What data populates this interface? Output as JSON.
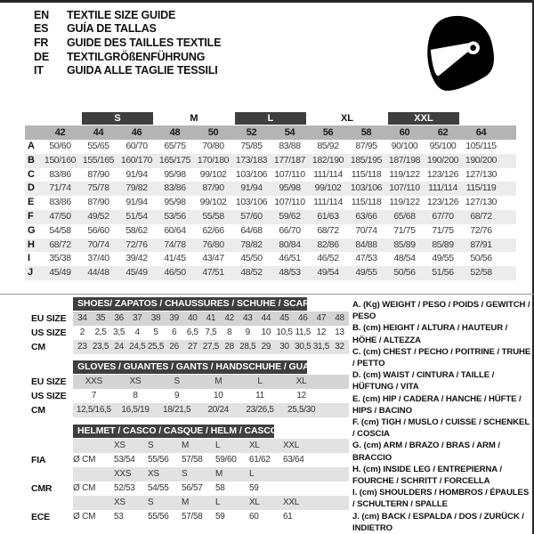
{
  "header": {
    "languages": [
      {
        "code": "EN",
        "title": "TEXTILE SIZE GUIDE"
      },
      {
        "code": "ES",
        "title": "GUÍA DE TALLAS"
      },
      {
        "code": "FR",
        "title": "GUIDE DES TAILLES TEXTILE"
      },
      {
        "code": "DE",
        "title": "TEXTILGRÖßENFÜHRUNG"
      },
      {
        "code": "IT",
        "title": "GUIDA ALLE TAGLIE TESSILI"
      }
    ],
    "helmet_icon": "full-face-helmet-icon"
  },
  "colors": {
    "dark_bar": "#3f3f3f",
    "column_header_gray": "#b4b4b4",
    "row_stripe": "#ececec",
    "section_row_gray": "#d4d4d4",
    "section_row_light_gray": "#e2e2e2",
    "border": "#262626"
  },
  "main_table": {
    "size_groups": [
      {
        "label": "",
        "cols": 1,
        "dark": false
      },
      {
        "label": "S",
        "cols": 2,
        "dark": true
      },
      {
        "label": "M",
        "cols": 2,
        "dark": false
      },
      {
        "label": "L",
        "cols": 2,
        "dark": true
      },
      {
        "label": "XL",
        "cols": 2,
        "dark": false
      },
      {
        "label": "XXL",
        "cols": 2,
        "dark": true
      },
      {
        "label": "",
        "cols": 1,
        "dark": false
      }
    ],
    "columns": [
      "42",
      "44",
      "46",
      "48",
      "50",
      "52",
      "54",
      "56",
      "58",
      "60",
      "62",
      "64"
    ],
    "rows": [
      {
        "label": "A",
        "values": [
          "50/60",
          "55/65",
          "60/70",
          "65/75",
          "70/80",
          "75/85",
          "83/88",
          "85/92",
          "87/95",
          "90/100",
          "95/100",
          "105/115"
        ]
      },
      {
        "label": "B",
        "values": [
          "150/160",
          "155/165",
          "160/170",
          "165/175",
          "170/180",
          "173/183",
          "177/187",
          "182/190",
          "185/195",
          "187/198",
          "190/200",
          "190/200"
        ]
      },
      {
        "label": "C",
        "values": [
          "83/86",
          "87/90",
          "91/94",
          "95/98",
          "99/102",
          "103/106",
          "107/110",
          "111/114",
          "115/118",
          "119/122",
          "123/126",
          "127/130"
        ]
      },
      {
        "label": "D",
        "values": [
          "71/74",
          "75/78",
          "79/82",
          "83/86",
          "87/90",
          "91/94",
          "95/98",
          "99/102",
          "103/106",
          "107/110",
          "111/114",
          "115/119"
        ]
      },
      {
        "label": "E",
        "values": [
          "83/86",
          "87/90",
          "91/94",
          "95/98",
          "99/102",
          "103/106",
          "107/110",
          "111/114",
          "115/118",
          "119/122",
          "123/126",
          "127/130"
        ]
      },
      {
        "label": "F",
        "values": [
          "47/50",
          "49/52",
          "51/54",
          "53/56",
          "55/58",
          "57/60",
          "59/62",
          "61/63",
          "63/66",
          "65/68",
          "67/70",
          "68/72"
        ]
      },
      {
        "label": "G",
        "values": [
          "54/58",
          "56/60",
          "58/62",
          "60/64",
          "62/66",
          "64/68",
          "66/70",
          "68/72",
          "70/74",
          "71/75",
          "71/75",
          "72/76"
        ]
      },
      {
        "label": "H",
        "values": [
          "68/72",
          "70/74",
          "72/76",
          "74/78",
          "76/80",
          "78/82",
          "80/84",
          "82/86",
          "84/88",
          "85/89",
          "85/89",
          "87/91"
        ]
      },
      {
        "label": "I",
        "values": [
          "35/38",
          "37/40",
          "39/42",
          "41/45",
          "43/47",
          "45/50",
          "46/51",
          "46/52",
          "47/53",
          "48/54",
          "49/55",
          "50/56"
        ]
      },
      {
        "label": "J",
        "values": [
          "45/49",
          "44/48",
          "45/49",
          "46/50",
          "47/51",
          "48/52",
          "48/53",
          "49/54",
          "49/55",
          "50/56",
          "51/56",
          "52/58"
        ]
      }
    ]
  },
  "shoes": {
    "title": "SHOES/ ZAPATOS / CHAUSSURES / SCHUHE / SCARPE",
    "rows": [
      {
        "label": "EU SIZE",
        "shade": "#d4d4d4",
        "values": [
          "34",
          "35",
          "36",
          "37",
          "38",
          "39",
          "40",
          "41",
          "42",
          "43",
          "44",
          "45",
          "46",
          "47",
          "48"
        ]
      },
      {
        "label": "US SIZE",
        "shade": "",
        "values": [
          "2",
          "2,5",
          "3,5",
          "4",
          "5",
          "6",
          "6,5",
          "7,5",
          "8",
          "9",
          "10",
          "10,5",
          "11,5",
          "12",
          "13"
        ]
      },
      {
        "label": "CM",
        "shade": "#e2e2e2",
        "values": [
          "23",
          "23,5",
          "24",
          "24,5",
          "25,5",
          "26",
          "27",
          "27,5",
          "28",
          "28,5",
          "29",
          "30",
          "30,5",
          "31,5",
          "32"
        ]
      }
    ]
  },
  "gloves": {
    "title": "GLOVES / GUANTES / GANTS / HANDSCHUHE / GUANTI",
    "rows": [
      {
        "label": "EU SIZE",
        "shade": "#d4d4d4",
        "values": [
          "XXS",
          "XS",
          "S",
          "M",
          "L",
          "XL"
        ]
      },
      {
        "label": "US SIZE",
        "shade": "",
        "values": [
          "7",
          "8",
          "9",
          "10",
          "11",
          "12"
        ]
      },
      {
        "label": "CM",
        "shade": "#e2e2e2",
        "values": [
          "12,5/16,5",
          "16,5/19",
          "18/21,5",
          "20/24",
          "23/26,5",
          "25,5/30"
        ]
      }
    ]
  },
  "helmet": {
    "title": "HELMET / CASCO / CASQUE / HELM / CASCO",
    "groups": [
      {
        "label": "FIA",
        "unit": "Ø CM",
        "sizes": [
          "XS",
          "S",
          "M",
          "L",
          "XL",
          "XXL"
        ],
        "values": [
          "53/54",
          "55/56",
          "57/58",
          "59/60",
          "61/62",
          "63/64"
        ]
      },
      {
        "label": "CMR",
        "unit": "Ø CM",
        "sizes": [
          "XXS",
          "XS",
          "S",
          "M",
          "L"
        ],
        "values": [
          "52/53",
          "54/55",
          "56/57",
          "58",
          "59"
        ]
      },
      {
        "label": "ECE",
        "unit": "Ø CM",
        "sizes": [
          "XS",
          "S",
          "M",
          "L",
          "XL",
          "XXL"
        ],
        "values": [
          "53",
          "55/56",
          "57/58",
          "59",
          "60",
          "61"
        ]
      }
    ]
  },
  "legend": {
    "items": [
      "A. (Kg) WEIGHT / PESO / POIDS / GEWITCH / PESO",
      "B. (cm) HEIGHT / ALTURA / HAUTEUR / HÖHE / ALTEZZA",
      "C. (cm) CHEST / PECHO / POITRINE / TRUHE / PETTO",
      "D. (cm) WAIST / CINTURA / TAILLE / HÜFTUNG / VITA",
      "E. (cm) HIP / CADERA / HANCHE / HÜFTE / HIPS / BACINO",
      "F. (cm) TIGH / MUSLO / CUISSE / SCHENKEL / COSCIA",
      "G. (cm) ARM / BRAZO / BRAS / ARM / BRACCIO",
      "H. (cm) INSIDE LEG / ENTREPIERNA / FOURCHE / SCHRITT / FORCELLA",
      "I. (cm) SHOULDERS / HOMBROS / ÉPAULES / SCHULTERN / SPALLE",
      "J. (cm) BACK / ESPALDA / DOS / ZURÜCK / INDIETRO"
    ]
  }
}
